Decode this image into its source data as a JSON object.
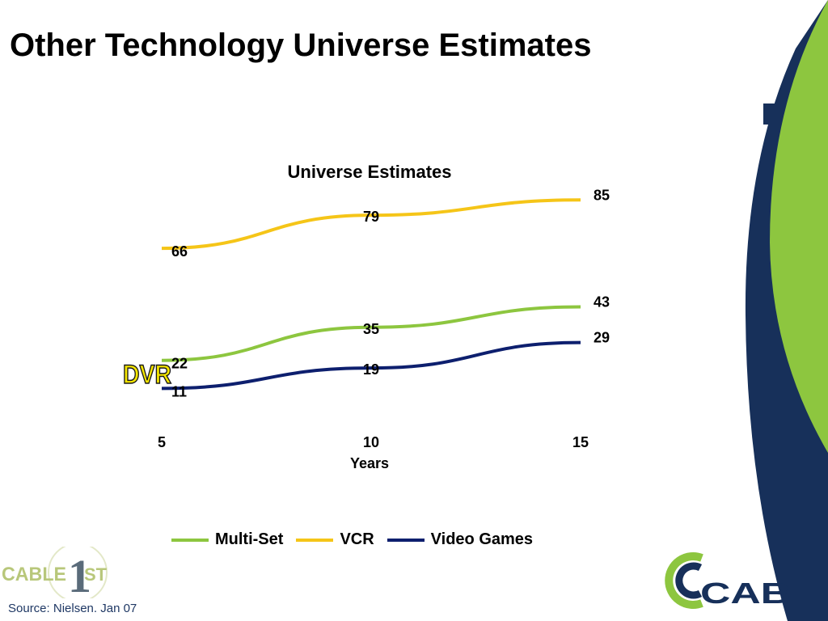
{
  "slide": {
    "title": "Other Technology Universe Estimates",
    "source": "Source:  Nielsen. Jan 07"
  },
  "annotation": {
    "text": "DVR"
  },
  "logos": {
    "left": {
      "text_main": "CABLE",
      "text_numeral": "1",
      "text_suffix": "ST"
    },
    "right": {
      "text": "CAB"
    }
  },
  "colors": {
    "multi_set": "#8dc63f",
    "vcr": "#f5c518",
    "video_games": "#0d1f6e",
    "deco_green": "#8dc63f",
    "deco_navy": "#17305a"
  },
  "chart_data": {
    "type": "line",
    "title": "Universe Estimates",
    "xlabel": "Years",
    "ylabel": "",
    "x": [
      5,
      10,
      15
    ],
    "x_tick_labels": [
      "5",
      "10",
      "15"
    ],
    "ylim": [
      0,
      100
    ],
    "grid": false,
    "legend_position": "bottom",
    "series": [
      {
        "name": "Multi-Set",
        "values": [
          22,
          35,
          43
        ],
        "labels": [
          "22",
          "35",
          "43"
        ]
      },
      {
        "name": "VCR",
        "values": [
          66,
          79,
          85
        ],
        "labels": [
          "66",
          "79",
          "85"
        ]
      },
      {
        "name": "Video Games",
        "values": [
          11,
          19,
          29
        ],
        "labels": [
          "11",
          "19",
          "29"
        ]
      }
    ]
  }
}
